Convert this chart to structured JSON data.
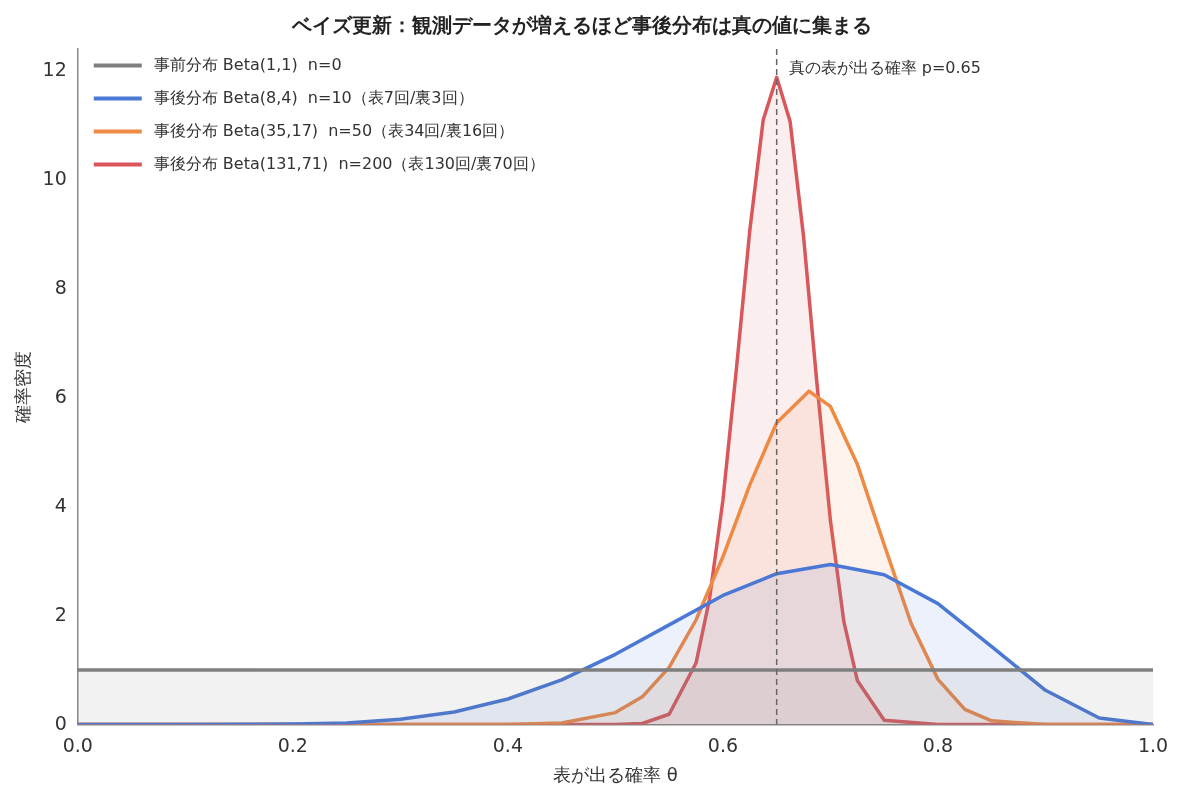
{
  "chart_data": {
    "type": "area",
    "title": "ベイズ更新：観測データが増えるほど事後分布は真の値に集まる",
    "xlabel": "表が出る確率 θ",
    "ylabel": "確率密度",
    "xlim": [
      0,
      1
    ],
    "xticks": [
      {
        "value": 0,
        "label": "0.0"
      },
      {
        "value": 0.2,
        "label": "0.2"
      },
      {
        "value": 0.4,
        "label": "0.4"
      },
      {
        "value": 0.6,
        "label": "0.6"
      },
      {
        "value": 0.8,
        "label": "0.8"
      },
      {
        "value": 1,
        "label": "1.0"
      }
    ],
    "ylim": [
      0,
      12.4
    ],
    "yticks": [
      0,
      2,
      4,
      6,
      8,
      10,
      12
    ],
    "grid": false,
    "legend": "top left",
    "marker": "none",
    "line_style": "solid",
    "ref_lines": [
      {
        "axis": "x",
        "value": 0.65,
        "label": "真の表が出る確率 p=0.65",
        "color": "#666666",
        "line_style": "dashed"
      }
    ],
    "series": [
      {
        "name": "事前分布 Beta(1,1)  n=0",
        "color": "#7f7f7f",
        "x": [
          0,
          1
        ],
        "values": [
          1,
          1
        ]
      },
      {
        "name": "事後分布 Beta(8,4)  n=10（表7回/裏3回）",
        "color": "#4a78d4",
        "x": [
          0,
          0.1,
          0.2,
          0.25,
          0.3,
          0.35,
          0.4,
          0.45,
          0.5,
          0.55,
          0.6,
          0.65,
          0.7,
          0.75,
          0.8,
          0.85,
          0.9,
          0.95,
          1
        ],
        "values": [
          0,
          0,
          0.01,
          0.03,
          0.1,
          0.23,
          0.47,
          0.82,
          1.29,
          1.83,
          2.37,
          2.77,
          2.94,
          2.75,
          2.22,
          1.43,
          0.63,
          0.12,
          0
        ]
      },
      {
        "name": "事後分布 Beta(35,17)  n=50（表34回/裏16回）",
        "color": "#ef8a44",
        "x": [
          0,
          0.4,
          0.45,
          0.5,
          0.525,
          0.55,
          0.575,
          0.6,
          0.625,
          0.65,
          0.68,
          0.7,
          0.725,
          0.75,
          0.775,
          0.8,
          0.825,
          0.85,
          0.9,
          1
        ],
        "values": [
          0,
          0,
          0.03,
          0.22,
          0.51,
          1.05,
          1.92,
          3.08,
          4.4,
          5.54,
          6.12,
          5.84,
          4.78,
          3.3,
          1.86,
          0.83,
          0.28,
          0.07,
          0,
          0
        ]
      },
      {
        "name": "事後分布 Beta(131,71)  n=200（表130回/裏70回）",
        "color": "#d9575a",
        "x": [
          0,
          0.5,
          0.525,
          0.55,
          0.575,
          0.5875,
          0.6,
          0.6125,
          0.625,
          0.6375,
          0.65,
          0.6625,
          0.675,
          0.6875,
          0.7,
          0.7125,
          0.725,
          0.75,
          0.8,
          1
        ],
        "values": [
          0,
          0,
          0.02,
          0.19,
          1.13,
          2.3,
          4.12,
          6.52,
          9.07,
          11.1,
          11.88,
          11.07,
          8.96,
          6.25,
          3.74,
          1.89,
          0.81,
          0.08,
          0,
          0
        ]
      }
    ]
  }
}
